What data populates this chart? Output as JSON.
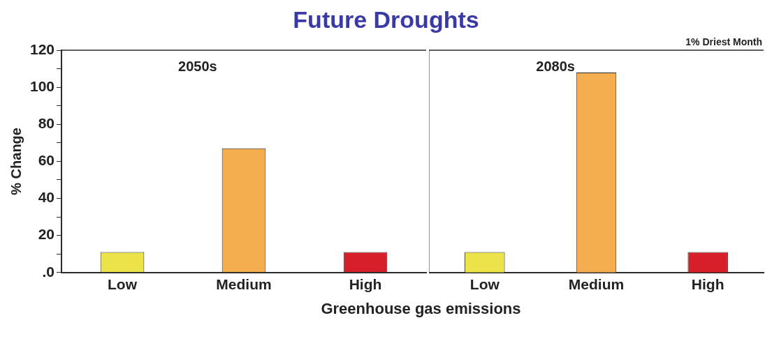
{
  "chart_data": [
    {
      "type": "bar",
      "title": "Future Droughts",
      "xlabel": "Greenhouse gas emissions",
      "ylabel": "% Change",
      "categories": [
        "Low",
        "Medium",
        "High"
      ],
      "values": [
        11,
        67,
        11
      ],
      "colors": [
        "#ece34a",
        "#f4ad4f",
        "#d61f28"
      ],
      "ylim": [
        0,
        120
      ],
      "yticks": [
        {
          "value": 0,
          "label": ".0"
        },
        {
          "value": 10,
          "label": null
        },
        20,
        {
          "value": 30,
          "label": null
        },
        40,
        {
          "value": 50,
          "label": null
        },
        60,
        {
          "value": 70,
          "label": null
        },
        80,
        {
          "value": 90,
          "label": null
        },
        100,
        {
          "value": 110,
          "label": null
        },
        120
      ],
      "annotations": [
        "2050s"
      ],
      "grid": false,
      "legend": false
    },
    {
      "type": "bar",
      "categories": [
        "Low",
        "Medium",
        "High"
      ],
      "values": [
        11,
        108,
        11
      ],
      "colors": [
        "#ece34a",
        "#f4ad4f",
        "#d61f28"
      ],
      "ylim": [
        0,
        120
      ],
      "annotations": [
        "2080s",
        "1% Driest Month"
      ],
      "tick_labels": "x",
      "grid": false,
      "legend": false
    }
  ]
}
